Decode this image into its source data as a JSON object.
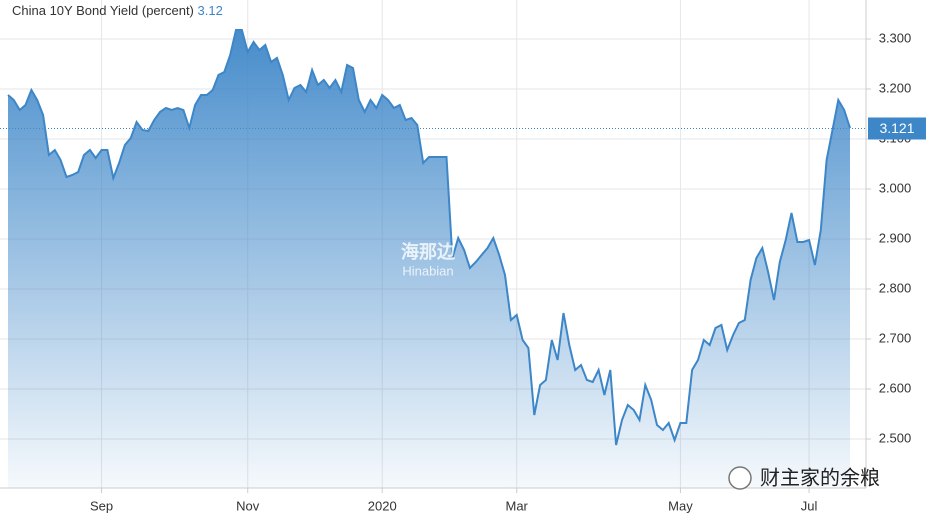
{
  "chart_data": {
    "type": "area",
    "title": "China 10Y Bond Yield (percent)",
    "current_value": 3.12,
    "last_value": 3.121,
    "color": "#3d86c8",
    "watermarks": [
      "海那边",
      "Hinabian",
      "财主家的余粮"
    ],
    "values": [
      3.188,
      3.178,
      3.158,
      3.168,
      3.198,
      3.178,
      3.148,
      3.068,
      3.078,
      3.058,
      3.024,
      3.028,
      3.034,
      3.068,
      3.078,
      3.062,
      3.078,
      3.078,
      3.022,
      3.052,
      3.088,
      3.102,
      3.134,
      3.118,
      3.116,
      3.138,
      3.154,
      3.162,
      3.158,
      3.162,
      3.158,
      3.122,
      3.168,
      3.188,
      3.188,
      3.198,
      3.228,
      3.234,
      3.268,
      3.318,
      3.318,
      3.274,
      3.294,
      3.278,
      3.288,
      3.254,
      3.262,
      3.228,
      3.178,
      3.202,
      3.208,
      3.194,
      3.238,
      3.208,
      3.218,
      3.202,
      3.218,
      3.194,
      3.248,
      3.242,
      3.178,
      3.154,
      3.178,
      3.162,
      3.188,
      3.178,
      3.162,
      3.168,
      3.138,
      3.142,
      3.128,
      3.052,
      3.064,
      3.064,
      3.064,
      3.064,
      2.862,
      2.902,
      2.878,
      2.842,
      2.854,
      2.868,
      2.882,
      2.902,
      2.868,
      2.828,
      2.738,
      2.748,
      2.698,
      2.682,
      2.548,
      2.608,
      2.618,
      2.698,
      2.658,
      2.752,
      2.688,
      2.638,
      2.648,
      2.618,
      2.614,
      2.638,
      2.588,
      2.638,
      2.488,
      2.538,
      2.568,
      2.558,
      2.538,
      2.608,
      2.578,
      2.528,
      2.518,
      2.532,
      2.498,
      2.532,
      2.532,
      2.638,
      2.658,
      2.698,
      2.688,
      2.722,
      2.728,
      2.678,
      2.708,
      2.732,
      2.738,
      2.818,
      2.862,
      2.882,
      2.834,
      2.778,
      2.854,
      2.898,
      2.952,
      2.894,
      2.894,
      2.898,
      2.848,
      2.918,
      3.058,
      3.118,
      3.178,
      3.158,
      3.122
    ],
    "xticks": [
      {
        "value": 16,
        "label": "Sep"
      },
      {
        "value": 41,
        "label": "Nov"
      },
      {
        "value": 64,
        "label": "2020"
      },
      {
        "value": 87,
        "label": "Mar"
      },
      {
        "value": 115,
        "label": "May"
      },
      {
        "value": 137,
        "label": "Jul"
      }
    ],
    "ylim": [
      2.402,
      3.362
    ],
    "yticks": [
      {
        "value": 2.5,
        "label": "2.500"
      },
      {
        "value": 2.6,
        "label": "2.600"
      },
      {
        "value": 2.7,
        "label": "2.700"
      },
      {
        "value": 2.8,
        "label": "2.800"
      },
      {
        "value": 2.9,
        "label": "2.900"
      },
      {
        "value": 3.0,
        "label": "3.000"
      },
      {
        "value": 3.1,
        "label": "3.100"
      },
      {
        "value": 3.2,
        "label": "3.200"
      },
      {
        "value": 3.3,
        "label": "3.300"
      }
    ],
    "grid": true
  }
}
